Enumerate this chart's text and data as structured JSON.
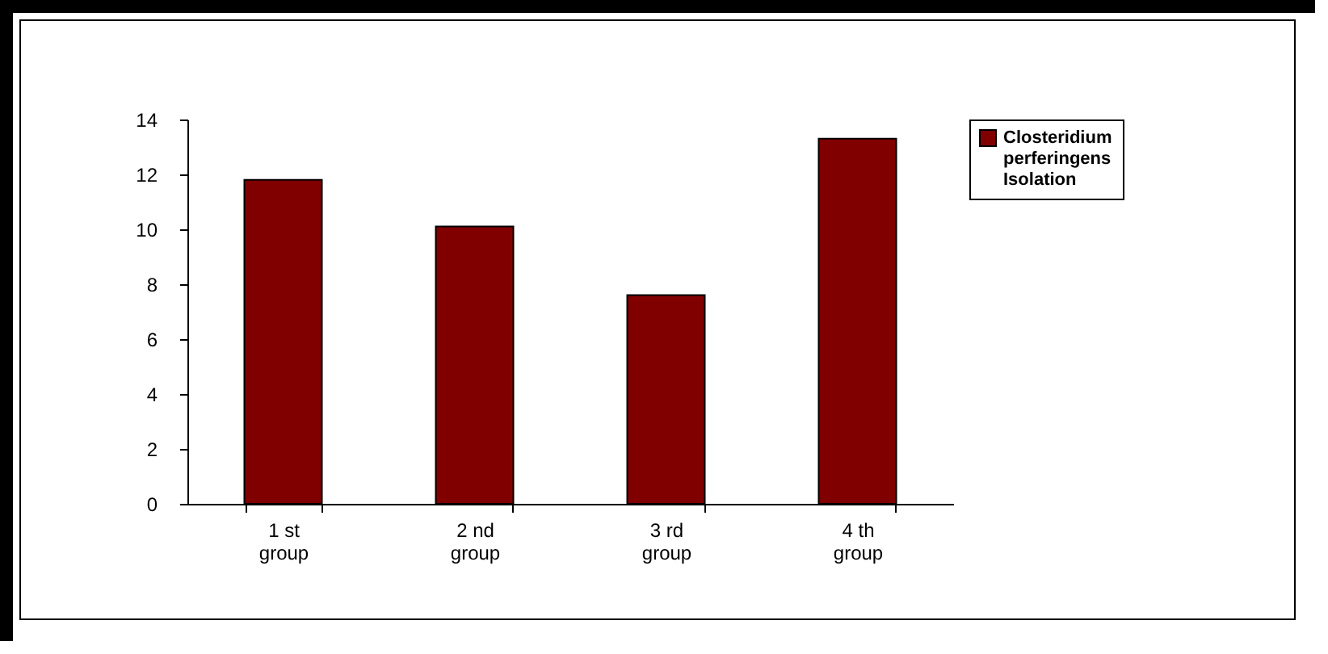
{
  "chart_data": {
    "type": "bar",
    "categories": [
      "1 st group",
      "2 nd group",
      "3 rd group",
      "4 th group"
    ],
    "series": [
      {
        "name": "Closteridium perferingens Isolation",
        "color": "#800000",
        "values": [
          11.8,
          10.1,
          7.6,
          13.3
        ]
      }
    ],
    "ylim": [
      0,
      14
    ],
    "yticks": [
      0,
      2,
      4,
      6,
      8,
      10,
      12,
      14
    ],
    "grid": false,
    "legend": "top right"
  }
}
